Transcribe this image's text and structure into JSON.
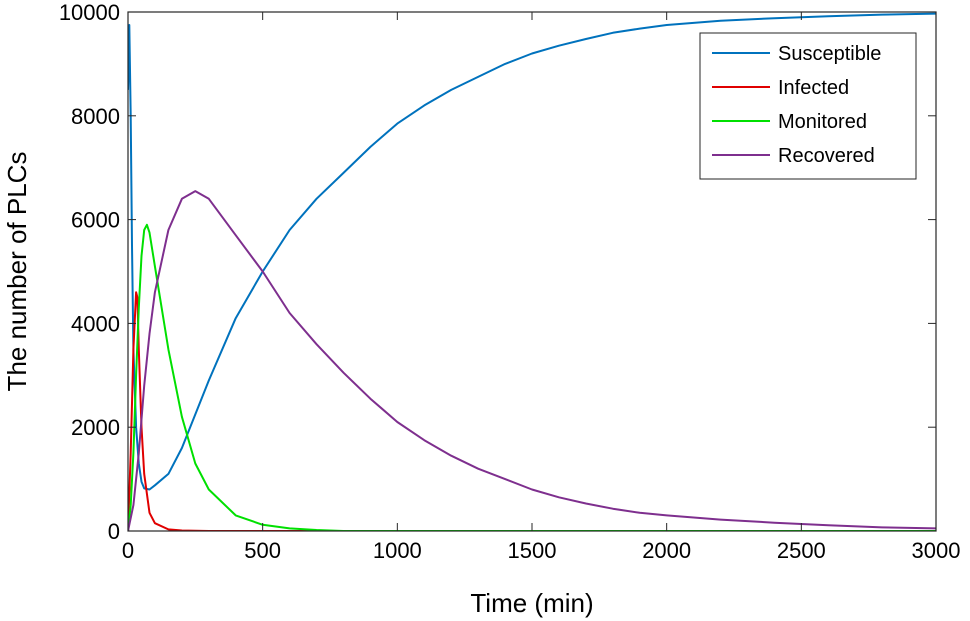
{
  "chart_data": {
    "type": "line",
    "title": "",
    "xlabel": "Time (min)",
    "ylabel": "The number of PLCs",
    "xlim": [
      0,
      3000
    ],
    "ylim": [
      0,
      10000
    ],
    "xticks": [
      0,
      500,
      1000,
      1500,
      2000,
      2500,
      3000
    ],
    "yticks": [
      0,
      2000,
      4000,
      6000,
      8000,
      10000
    ],
    "legend_position": "top-right",
    "grid": false,
    "series": [
      {
        "name": "Susceptible",
        "color": "#0072BD",
        "points": [
          [
            0,
            8500
          ],
          [
            5,
            9750
          ],
          [
            10,
            8000
          ],
          [
            15,
            5500
          ],
          [
            20,
            3500
          ],
          [
            30,
            2000
          ],
          [
            40,
            1300
          ],
          [
            50,
            950
          ],
          [
            60,
            820
          ],
          [
            80,
            800
          ],
          [
            100,
            880
          ],
          [
            150,
            1100
          ],
          [
            200,
            1600
          ],
          [
            300,
            2900
          ],
          [
            400,
            4100
          ],
          [
            500,
            5000
          ],
          [
            600,
            5800
          ],
          [
            700,
            6400
          ],
          [
            800,
            6900
          ],
          [
            900,
            7400
          ],
          [
            1000,
            7850
          ],
          [
            1100,
            8200
          ],
          [
            1200,
            8500
          ],
          [
            1300,
            8750
          ],
          [
            1400,
            9000
          ],
          [
            1500,
            9200
          ],
          [
            1600,
            9350
          ],
          [
            1700,
            9480
          ],
          [
            1800,
            9600
          ],
          [
            1900,
            9680
          ],
          [
            2000,
            9750
          ],
          [
            2200,
            9830
          ],
          [
            2400,
            9880
          ],
          [
            2600,
            9920
          ],
          [
            2800,
            9950
          ],
          [
            3000,
            9970
          ]
        ]
      },
      {
        "name": "Infected",
        "color": "#E00000",
        "points": [
          [
            0,
            0
          ],
          [
            10,
            1500
          ],
          [
            20,
            3500
          ],
          [
            30,
            4600
          ],
          [
            35,
            4500
          ],
          [
            40,
            3500
          ],
          [
            50,
            2000
          ],
          [
            60,
            1100
          ],
          [
            80,
            350
          ],
          [
            100,
            150
          ],
          [
            150,
            30
          ],
          [
            200,
            10
          ],
          [
            300,
            0
          ],
          [
            3000,
            0
          ]
        ]
      },
      {
        "name": "Monitored",
        "color": "#00E000",
        "points": [
          [
            0,
            0
          ],
          [
            10,
            500
          ],
          [
            20,
            1500
          ],
          [
            30,
            3000
          ],
          [
            40,
            4300
          ],
          [
            50,
            5300
          ],
          [
            60,
            5800
          ],
          [
            70,
            5900
          ],
          [
            80,
            5750
          ],
          [
            100,
            5100
          ],
          [
            150,
            3500
          ],
          [
            200,
            2200
          ],
          [
            250,
            1300
          ],
          [
            300,
            800
          ],
          [
            400,
            300
          ],
          [
            500,
            120
          ],
          [
            600,
            50
          ],
          [
            700,
            20
          ],
          [
            800,
            0
          ],
          [
            3000,
            0
          ]
        ]
      },
      {
        "name": "Recovered",
        "color": "#7E2F8E",
        "points": [
          [
            0,
            0
          ],
          [
            20,
            500
          ],
          [
            40,
            1500
          ],
          [
            60,
            2800
          ],
          [
            80,
            3800
          ],
          [
            100,
            4600
          ],
          [
            150,
            5800
          ],
          [
            200,
            6400
          ],
          [
            250,
            6550
          ],
          [
            300,
            6400
          ],
          [
            400,
            5700
          ],
          [
            500,
            5000
          ],
          [
            600,
            4200
          ],
          [
            700,
            3600
          ],
          [
            800,
            3050
          ],
          [
            900,
            2550
          ],
          [
            1000,
            2100
          ],
          [
            1100,
            1750
          ],
          [
            1200,
            1450
          ],
          [
            1300,
            1200
          ],
          [
            1400,
            1000
          ],
          [
            1500,
            800
          ],
          [
            1600,
            650
          ],
          [
            1700,
            530
          ],
          [
            1800,
            430
          ],
          [
            1900,
            350
          ],
          [
            2000,
            300
          ],
          [
            2200,
            220
          ],
          [
            2400,
            160
          ],
          [
            2600,
            110
          ],
          [
            2800,
            70
          ],
          [
            3000,
            50
          ]
        ]
      }
    ]
  }
}
